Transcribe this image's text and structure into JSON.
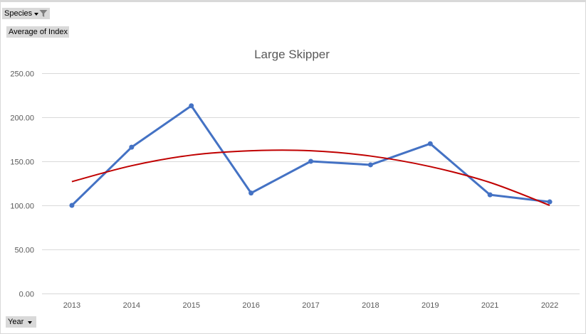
{
  "pivot_buttons": {
    "species_label": "Species",
    "values_label": "Average of Index",
    "year_label": "Year"
  },
  "chart_data": {
    "type": "line",
    "title": "Large Skipper",
    "categories": [
      "2013",
      "2014",
      "2015",
      "2016",
      "2017",
      "2018",
      "2019",
      "2021",
      "2022"
    ],
    "series": [
      {
        "values": [
          100,
          166,
          213,
          114,
          150,
          146,
          170,
          112,
          104
        ],
        "color": "#4472c4",
        "markers": true
      }
    ],
    "trendline": {
      "type": "polynomial",
      "order": 2,
      "color": "#c00000",
      "values": [
        127,
        145,
        157,
        162,
        162,
        156,
        144,
        126,
        100
      ]
    },
    "y_ticks": [
      "0.00",
      "50.00",
      "100.00",
      "150.00",
      "200.00",
      "250.00"
    ],
    "ylim": [
      0,
      250
    ],
    "grid": true,
    "legend": "none"
  }
}
